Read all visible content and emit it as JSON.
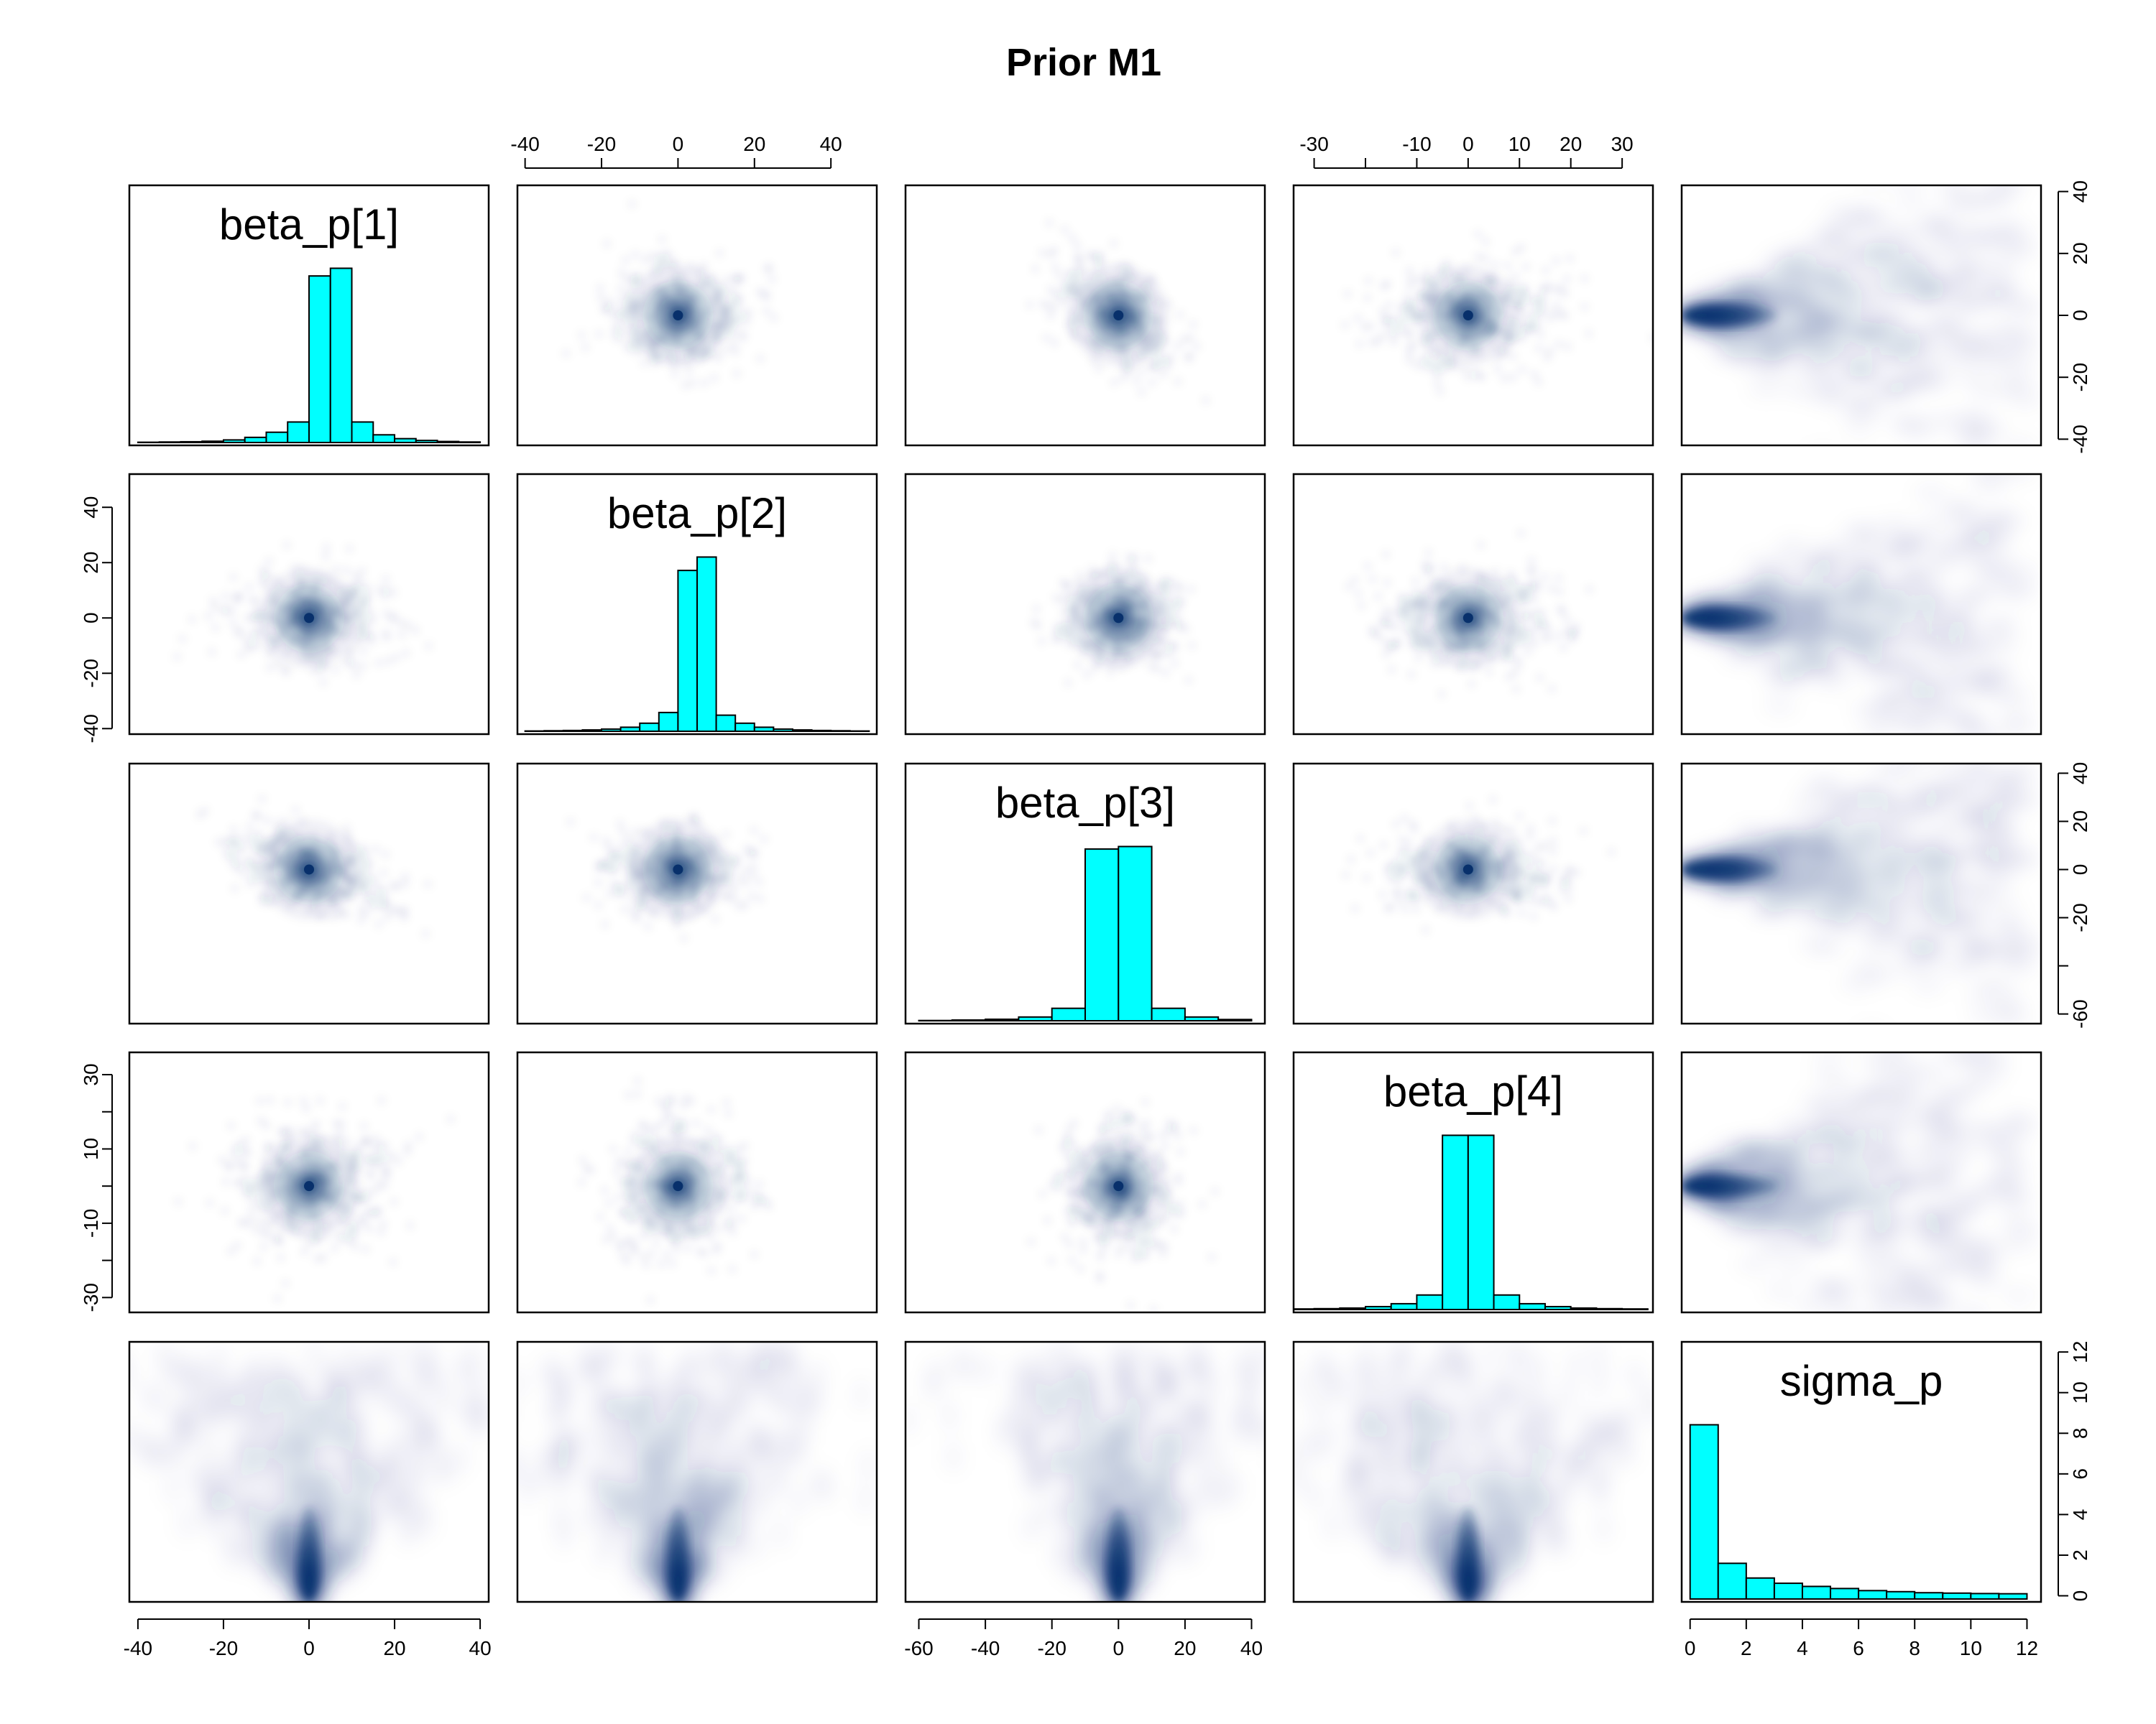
{
  "chart_data": {
    "type": "pairs",
    "title": "Prior M1",
    "variables": [
      "beta_p[1]",
      "beta_p[2]",
      "beta_p[3]",
      "beta_p[4]",
      "sigma_p"
    ],
    "variable_ranges": [
      [
        -42,
        42
      ],
      [
        -42,
        52
      ],
      [
        -64,
        44
      ],
      [
        -34,
        36
      ],
      [
        -0.3,
        12.5
      ]
    ],
    "axis_ticks": [
      {
        "positions": [
          -40,
          -20,
          0,
          20,
          40
        ],
        "labels": [
          "-40",
          "-20",
          "0",
          "20",
          "40"
        ]
      },
      {
        "positions": [
          -40,
          -20,
          0,
          20,
          40
        ],
        "labels": [
          "-40",
          "-20",
          "0",
          "20",
          "40"
        ]
      },
      {
        "positions": [
          -60,
          -40,
          -20,
          0,
          20,
          40
        ],
        "labels": [
          "-60",
          "-40",
          "-20",
          "0",
          "20",
          "40"
        ]
      },
      {
        "positions": [
          -30,
          -20,
          -10,
          0,
          10,
          20,
          30
        ],
        "labels": [
          "-30",
          "",
          "-10",
          "0",
          "10",
          "20",
          "30"
        ]
      },
      {
        "positions": [
          0,
          2,
          4,
          6,
          8,
          10,
          12
        ],
        "labels": [
          "0",
          "2",
          "4",
          "6",
          "8",
          "10",
          "12"
        ]
      }
    ],
    "left_axis_ticks": [
      null,
      {
        "positions": [
          -40,
          -20,
          0,
          20,
          40
        ],
        "labels": [
          "-40",
          "-20",
          "0",
          "20",
          "40"
        ]
      },
      null,
      {
        "positions": [
          -30,
          -20,
          -10,
          0,
          10,
          20,
          30
        ],
        "labels": [
          "-30",
          "",
          "-10",
          "",
          "10",
          "",
          "30"
        ]
      },
      null
    ],
    "right_axis_ticks": [
      {
        "positions": [
          -40,
          -20,
          0,
          20,
          40
        ],
        "labels": [
          "-40",
          "-20",
          "0",
          "20",
          "40"
        ]
      },
      null,
      {
        "positions": [
          -60,
          -40,
          -20,
          0,
          20,
          40
        ],
        "labels": [
          "-60",
          "",
          "-20",
          "0",
          "20",
          "40"
        ]
      },
      null,
      {
        "positions": [
          0,
          2,
          4,
          6,
          8,
          10,
          12
        ],
        "labels": [
          "0",
          "2",
          "4",
          "6",
          "8",
          "10",
          "12"
        ]
      }
    ],
    "histograms": [
      {
        "breaks": [
          -40,
          -35,
          -30,
          -25,
          -20,
          -15,
          -10,
          -5,
          0,
          5,
          10,
          15,
          20,
          25,
          30,
          35,
          40
        ],
        "counts": [
          0.1,
          0.2,
          0.3,
          0.5,
          1,
          2,
          4,
          8,
          65,
          68,
          8,
          3,
          1.5,
          0.8,
          0.4,
          0.2
        ]
      },
      {
        "breaks": [
          -40,
          -35,
          -30,
          -25,
          -20,
          -15,
          -10,
          -5,
          0,
          5,
          10,
          15,
          20,
          25,
          30,
          35,
          40,
          45,
          50
        ],
        "counts": [
          0.1,
          0.2,
          0.3,
          0.5,
          0.8,
          1.5,
          3,
          7,
          60,
          65,
          6,
          3,
          1.5,
          0.8,
          0.5,
          0.3,
          0.2,
          0.1
        ]
      },
      {
        "breaks": [
          -60,
          -50,
          -40,
          -30,
          -20,
          -10,
          0,
          10,
          20,
          30,
          40
        ],
        "counts": [
          0.1,
          0.3,
          0.6,
          1.5,
          5,
          69,
          70,
          5,
          1.5,
          0.5
        ]
      },
      {
        "breaks": [
          -35,
          -30,
          -25,
          -20,
          -15,
          -10,
          -5,
          0,
          5,
          10,
          15,
          20,
          25,
          30,
          35
        ],
        "counts": [
          0.2,
          0.3,
          0.5,
          1,
          2,
          5,
          60,
          60,
          5,
          2,
          1,
          0.5,
          0.3,
          0.2
        ]
      },
      {
        "breaks": [
          0,
          1,
          2,
          3,
          4,
          5,
          6,
          7,
          8,
          9,
          10,
          11,
          12
        ],
        "counts": [
          8.3,
          1.7,
          1.0,
          0.75,
          0.6,
          0.5,
          0.4,
          0.35,
          0.3,
          0.28,
          0.26,
          0.25
        ]
      }
    ],
    "density_color": "#08306b",
    "hist_fill": "#00ffff",
    "grid": false,
    "legend": "none"
  }
}
